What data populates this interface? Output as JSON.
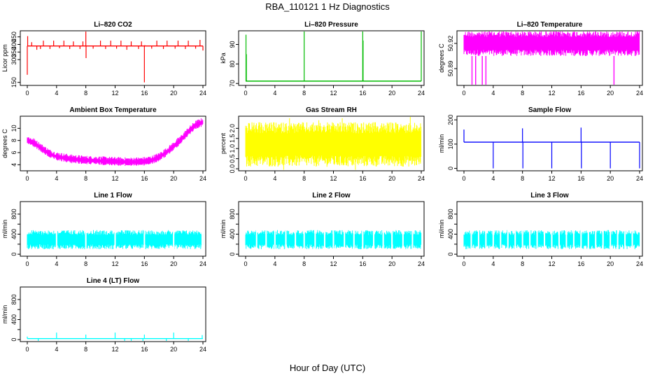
{
  "title": "RBA_110121  1 Hz Diagnostics",
  "xlabel": "Hour of Day (UTC)",
  "x_ticks": [
    0,
    4,
    8,
    12,
    16,
    20,
    24
  ],
  "chart_data": [
    {
      "type": "line",
      "title": "Li–820 CO2",
      "ylabel": "Licor ppm",
      "color": "#ff0000",
      "xlim": [
        0,
        24
      ],
      "ylim": [
        130,
        490
      ],
      "yticks": [
        150,
        300,
        350,
        400,
        450
      ],
      "series": [
        {
          "baseline": 390,
          "events": [
            {
              "x": 0.0,
              "y": 200
            },
            {
              "x": 0.05,
              "y": 455
            },
            {
              "x": 0.6,
              "y": 415
            },
            {
              "x": 1.3,
              "y": 365
            },
            {
              "x": 1.8,
              "y": 370
            },
            {
              "x": 2.2,
              "y": 425
            },
            {
              "x": 3.1,
              "y": 370
            },
            {
              "x": 3.6,
              "y": 425
            },
            {
              "x": 4.4,
              "y": 375
            },
            {
              "x": 5.0,
              "y": 425
            },
            {
              "x": 5.8,
              "y": 370
            },
            {
              "x": 6.3,
              "y": 420
            },
            {
              "x": 7.2,
              "y": 370
            },
            {
              "x": 7.6,
              "y": 420
            },
            {
              "x": 8.0,
              "y": 485
            },
            {
              "x": 8.03,
              "y": 310
            },
            {
              "x": 9.0,
              "y": 372
            },
            {
              "x": 10.0,
              "y": 425
            },
            {
              "x": 10.7,
              "y": 370
            },
            {
              "x": 11.4,
              "y": 425
            },
            {
              "x": 12.2,
              "y": 372
            },
            {
              "x": 12.8,
              "y": 425
            },
            {
              "x": 13.6,
              "y": 365
            },
            {
              "x": 14.2,
              "y": 420
            },
            {
              "x": 15.2,
              "y": 370
            },
            {
              "x": 15.6,
              "y": 420
            },
            {
              "x": 16.0,
              "y": 150
            },
            {
              "x": 16.05,
              "y": 395
            },
            {
              "x": 17.0,
              "y": 372
            },
            {
              "x": 17.7,
              "y": 425
            },
            {
              "x": 18.6,
              "y": 370
            },
            {
              "x": 19.1,
              "y": 425
            },
            {
              "x": 20.2,
              "y": 372
            },
            {
              "x": 20.6,
              "y": 425
            },
            {
              "x": 21.6,
              "y": 370
            },
            {
              "x": 22.0,
              "y": 425
            },
            {
              "x": 23.0,
              "y": 372
            },
            {
              "x": 23.6,
              "y": 430
            },
            {
              "x": 24.0,
              "y": 360
            }
          ]
        }
      ]
    },
    {
      "type": "line",
      "title": "Li–820 Pressure",
      "ylabel": "kPa",
      "color": "#00bb00",
      "xlim": [
        0,
        24
      ],
      "ylim": [
        69,
        97
      ],
      "yticks": [
        70,
        80,
        90
      ],
      "series": [
        {
          "baseline": 71.2,
          "events": [
            {
              "x": 0.05,
              "y": 95
            },
            {
              "x": 0.1,
              "y": 85
            },
            {
              "x": 8.0,
              "y": 97
            },
            {
              "x": 16.0,
              "y": 97
            },
            {
              "x": 16.05,
              "y": 92
            },
            {
              "x": 24.0,
              "y": 97
            }
          ]
        }
      ]
    },
    {
      "type": "area",
      "title": "Li–820 Temperature",
      "ylabel": "degrees C",
      "color": "#ff00ff",
      "xlim": [
        0,
        24
      ],
      "ylim": [
        50.87,
        50.935
      ],
      "yticks": [
        50.89,
        50.92
      ],
      "ytick_labels": [
        "50.89",
        "50.92"
      ],
      "series": [
        {
          "band": [
            50.905,
            50.935
          ],
          "gaps": [
            {
              "x": 0.0,
              "y": 50.905
            },
            {
              "x": 0.3,
              "y": 50.905
            },
            {
              "x": 1.1,
              "y": 50.87
            },
            {
              "x": 1.6,
              "y": 50.87
            },
            {
              "x": 2.5,
              "y": 50.87
            },
            {
              "x": 3.0,
              "y": 50.87
            },
            {
              "x": 19.8,
              "y": 50.905
            },
            {
              "x": 20.5,
              "y": 50.87
            },
            {
              "x": 24.0,
              "y": 50.905
            }
          ]
        }
      ]
    },
    {
      "type": "line",
      "title": "Ambient Box Temperature",
      "ylabel": "degrees C",
      "color": "#ff00ff",
      "xlim": [
        0,
        24
      ],
      "ylim": [
        3,
        12
      ],
      "yticks": [
        4,
        6,
        8,
        10
      ],
      "series": [
        {
          "x": [
            0,
            1,
            2,
            3,
            4,
            6,
            8,
            10,
            12,
            14,
            16,
            17,
            18,
            19,
            20,
            21,
            22,
            23,
            24
          ],
          "y": [
            8.0,
            7.5,
            6.6,
            5.8,
            5.3,
            4.9,
            4.7,
            4.6,
            4.5,
            4.4,
            4.5,
            4.7,
            5.2,
            6.0,
            7.0,
            8.1,
            9.4,
            10.5,
            11.0
          ],
          "noise": 0.8
        }
      ]
    },
    {
      "type": "area",
      "title": "Gas Stream RH",
      "ylabel": "percent",
      "color": "#ffff00",
      "xlim": [
        0,
        24
      ],
      "ylim": [
        -0.1,
        2.6
      ],
      "yticks": [
        0.0,
        0.5,
        1.0,
        1.5,
        2.0
      ],
      "ytick_labels": [
        "0.0",
        "0.5",
        "1.0",
        "1.5",
        "2.0"
      ],
      "series": [
        {
          "band": [
            0.1,
            2.3
          ],
          "spikes": [
            {
              "x": 6.0,
              "y": 2.5
            },
            {
              "x": 10.0,
              "y": 2.4
            },
            {
              "x": 13.2,
              "y": 2.5
            },
            {
              "x": 22.5,
              "y": 2.6
            },
            {
              "x": 5.2,
              "y": -0.05
            },
            {
              "x": 15.0,
              "y": -0.05
            }
          ]
        }
      ]
    },
    {
      "type": "line",
      "title": "Sample Flow",
      "ylabel": "ml/min",
      "color": "#0000ff",
      "xlim": [
        0,
        24
      ],
      "ylim": [
        -10,
        215
      ],
      "yticks": [
        0,
        100,
        200
      ],
      "series": [
        {
          "baseline": 108,
          "events": [
            {
              "x": 0.0,
              "y": 160
            },
            {
              "x": 4.0,
              "y": 0
            },
            {
              "x": 8.0,
              "y": 165
            },
            {
              "x": 8.05,
              "y": 0
            },
            {
              "x": 12.0,
              "y": 0
            },
            {
              "x": 16.0,
              "y": 168
            },
            {
              "x": 16.05,
              "y": 0
            },
            {
              "x": 20.0,
              "y": 0
            },
            {
              "x": 24.0,
              "y": 0
            }
          ]
        }
      ]
    },
    {
      "type": "area",
      "title": "Line 1 Flow",
      "ylabel": "ml/min",
      "color": "#00ffff",
      "xlim": [
        0,
        24
      ],
      "ylim": [
        -40,
        1050
      ],
      "yticks": [
        0,
        200,
        400,
        600,
        800
      ],
      "ytick_labels": [
        "0",
        "400",
        "800"
      ],
      "series": [
        {
          "band": [
            100,
            480
          ],
          "gaps_x": [
            4.0,
            8.0,
            12.0,
            16.0,
            20.0,
            23.9
          ]
        }
      ]
    },
    {
      "type": "area",
      "title": "Line 2 Flow",
      "ylabel": "ml/min",
      "color": "#00ffff",
      "xlim": [
        0,
        24
      ],
      "ylim": [
        -40,
        1050
      ],
      "yticks": [
        0,
        200,
        400,
        600,
        800
      ],
      "ytick_labels": [
        "0",
        "400",
        "800"
      ],
      "series": [
        {
          "band": [
            100,
            480
          ],
          "gaps_x": [
            1.5,
            2.8,
            4.0,
            5.5,
            6.8,
            8.0,
            9.5,
            10.8,
            12.0,
            13.5,
            14.8,
            16.0,
            17.5,
            18.8,
            20.0,
            21.5,
            22.8
          ]
        }
      ]
    },
    {
      "type": "area",
      "title": "Line 3 Flow",
      "ylabel": "ml/min",
      "color": "#00ffff",
      "xlim": [
        0,
        24
      ],
      "ylim": [
        -40,
        1050
      ],
      "yticks": [
        0,
        200,
        400,
        600,
        800
      ],
      "ytick_labels": [
        "0",
        "400",
        "800"
      ],
      "series": [
        {
          "band": [
            100,
            480
          ],
          "gaps_x": [
            1.0,
            2.0,
            3.0,
            4.0,
            5.0,
            6.0,
            7.0,
            8.0,
            9.0,
            10.0,
            11.0,
            12.0,
            13.0,
            14.0,
            15.0,
            16.0,
            17.0,
            18.0,
            19.0,
            20.0,
            21.0,
            22.0,
            23.0
          ]
        }
      ]
    },
    {
      "type": "line",
      "title": "Line 4 (LT) Flow",
      "ylabel": "ml/min",
      "color": "#00ffff",
      "xlim": [
        0,
        24
      ],
      "ylim": [
        -40,
        1050
      ],
      "yticks": [
        0,
        200,
        400,
        600,
        800
      ],
      "ytick_labels": [
        "0",
        "400",
        "800"
      ],
      "series": [
        {
          "baseline": 20,
          "events": [
            {
              "x": 0.0,
              "y": 60
            },
            {
              "x": 1.5,
              "y": -30
            },
            {
              "x": 4.0,
              "y": 140
            },
            {
              "x": 8.0,
              "y": 100
            },
            {
              "x": 12.0,
              "y": 140
            },
            {
              "x": 13.3,
              "y": -30
            },
            {
              "x": 14.2,
              "y": -30
            },
            {
              "x": 15.8,
              "y": -40
            },
            {
              "x": 16.0,
              "y": 100
            },
            {
              "x": 19.0,
              "y": -30
            },
            {
              "x": 20.0,
              "y": 140
            },
            {
              "x": 22.0,
              "y": -30
            },
            {
              "x": 23.9,
              "y": 90
            }
          ]
        }
      ]
    }
  ]
}
